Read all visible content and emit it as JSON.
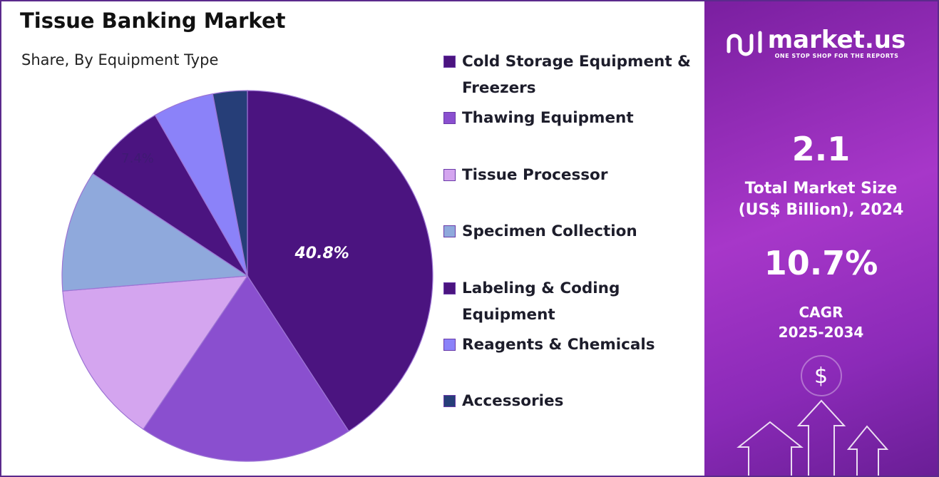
{
  "chart_data": {
    "type": "pie",
    "title": "Tissue Banking Market",
    "subtitle": "Share, By Equipment Type",
    "categories": [
      "Cold Storage Equipment & Freezers",
      "Thawing Equipment",
      "Tissue Processor",
      "Specimen Collection",
      "Labeling & Coding Equipment",
      "Reagents & Chemicals",
      "Accessories"
    ],
    "values": [
      40.8,
      18.7,
      14.2,
      10.6,
      7.4,
      5.3,
      3.0
    ],
    "value_labels": [
      "40.8%",
      null,
      null,
      null,
      "7.4%",
      null,
      null
    ],
    "colors": [
      "#4b1480",
      "#8a4fcf",
      "#d4a5ef",
      "#8fa9dc",
      "#4b1480",
      "#8b82f9",
      "#263e78"
    ],
    "legend": "right"
  },
  "panel": {
    "brand": "market.us",
    "tagline": "ONE STOP SHOP FOR THE REPORTS",
    "market_size": "2.1",
    "market_size_label": [
      "Total Market Size",
      "(US$ Billion), 2024"
    ],
    "cagr": "10.7%",
    "cagr_label": [
      "CAGR",
      "2025-2034"
    ],
    "icon": "$"
  }
}
